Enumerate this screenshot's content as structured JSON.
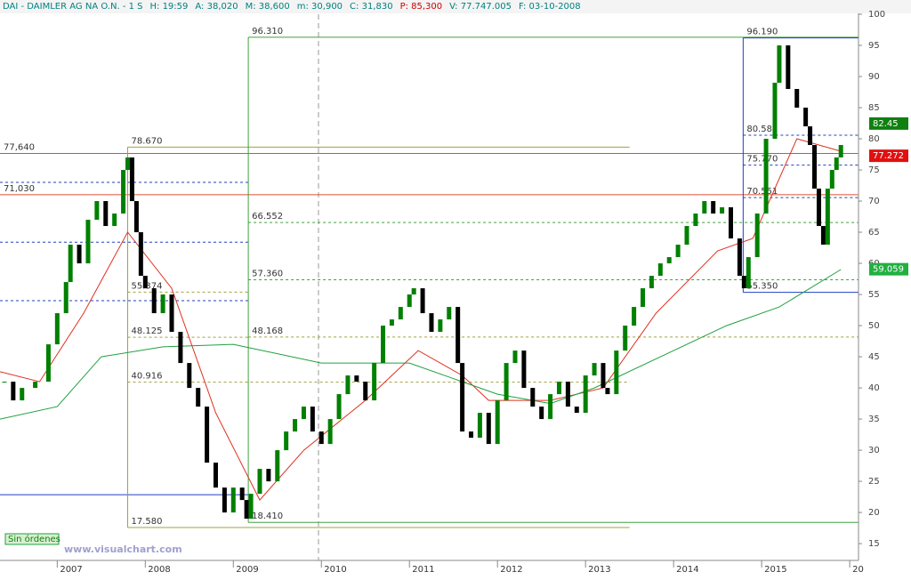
{
  "chart_data": {
    "type": "candlestick",
    "header": [
      {
        "text": "DAI - DAIMLER AG NA O.N. - 1 S",
        "color": "#008080"
      },
      {
        "text": "H: 19:59",
        "color": "#008080"
      },
      {
        "text": "A: 38,020",
        "color": "#008080"
      },
      {
        "text": "M: 38,600",
        "color": "#008080"
      },
      {
        "text": "m: 30,900",
        "color": "#008080"
      },
      {
        "text": "C: 31,830",
        "color": "#008080"
      },
      {
        "text": "P: 85,300",
        "color": "#d00000"
      },
      {
        "text": "V: 77.747.005",
        "color": "#008080"
      },
      {
        "text": "F: 03-10-2008",
        "color": "#008080"
      }
    ],
    "x": [
      2006.4,
      2006.5,
      2006.6,
      2006.75,
      2006.9,
      2007.0,
      2007.1,
      2007.15,
      2007.25,
      2007.35,
      2007.45,
      2007.55,
      2007.65,
      2007.75,
      2007.8,
      2007.85,
      2007.9,
      2007.95,
      2008.0,
      2008.1,
      2008.2,
      2008.3,
      2008.4,
      2008.5,
      2008.6,
      2008.7,
      2008.8,
      2008.9,
      2009.0,
      2009.1,
      2009.15,
      2009.2,
      2009.3,
      2009.4,
      2009.5,
      2009.6,
      2009.7,
      2009.8,
      2009.9,
      2010.0,
      2010.1,
      2010.2,
      2010.3,
      2010.4,
      2010.5,
      2010.6,
      2010.7,
      2010.8,
      2010.9,
      2011.0,
      2011.05,
      2011.15,
      2011.25,
      2011.35,
      2011.45,
      2011.55,
      2011.6,
      2011.7,
      2011.8,
      2011.9,
      2012.0,
      2012.1,
      2012.2,
      2012.3,
      2012.4,
      2012.5,
      2012.6,
      2012.7,
      2012.8,
      2012.9,
      2013.0,
      2013.1,
      2013.2,
      2013.25,
      2013.35,
      2013.45,
      2013.55,
      2013.65,
      2013.75,
      2013.85,
      2013.95,
      2014.05,
      2014.15,
      2014.25,
      2014.35,
      2014.45,
      2014.55,
      2014.65,
      2014.75,
      2014.8,
      2014.85,
      2014.95,
      2015.05,
      2015.15,
      2015.2,
      2015.3,
      2015.4,
      2015.5,
      2015.55,
      2015.6,
      2015.65,
      2015.7,
      2015.75,
      2015.8,
      2015.85,
      2015.9
    ],
    "values": [
      41,
      38,
      40,
      41,
      47,
      52,
      57,
      63,
      60,
      67,
      70,
      66,
      68,
      75,
      77,
      70,
      65,
      58,
      56,
      52,
      55,
      49,
      44,
      40,
      37,
      28,
      24,
      20,
      24,
      22,
      19,
      23,
      27,
      25,
      30,
      33,
      35,
      37,
      33,
      31,
      35,
      39,
      42,
      41,
      38,
      44,
      50,
      51,
      53,
      55,
      56,
      52,
      49,
      51,
      53,
      44,
      33,
      32,
      36,
      31,
      38,
      44,
      46,
      40,
      37,
      35,
      39,
      41,
      37,
      36,
      42,
      44,
      40,
      39,
      46,
      50,
      53,
      56,
      58,
      60,
      61,
      63,
      66,
      68,
      70,
      68,
      69,
      64,
      58,
      56,
      61,
      68,
      80,
      89,
      95,
      88,
      85,
      82,
      79,
      72,
      66,
      63,
      72,
      75,
      77,
      79
    ],
    "up_color": "#008000",
    "down_color": "#000000",
    "averages": [
      {
        "color": "#e03020",
        "x": [
          2006.35,
          2006.8,
          2007.3,
          2007.8,
          2008.3,
          2008.8,
          2009.3,
          2009.8,
          2010.5,
          2011.1,
          2011.6,
          2011.9,
          2012.6,
          2013.2,
          2013.8,
          2014.5,
          2014.9,
          2015.4,
          2015.9
        ],
        "values": [
          42.6,
          41,
          52,
          65,
          56,
          36,
          22,
          30,
          38,
          46,
          42,
          38,
          38,
          40,
          52,
          62,
          64,
          80,
          78
        ]
      },
      {
        "color": "#20a040",
        "x": [
          2006.35,
          2007.0,
          2007.5,
          2008.2,
          2009.0,
          2010.0,
          2011.0,
          2011.6,
          2012.0,
          2012.6,
          2013.1,
          2014.0,
          2014.6,
          2015.2,
          2015.9
        ],
        "values": [
          35,
          37,
          45,
          46.6,
          47,
          44,
          44,
          41,
          39,
          37.5,
          40,
          46,
          50,
          53,
          59
        ]
      }
    ],
    "levels": [
      {
        "value": 96.31,
        "label": "96.310",
        "color": "#40a040",
        "from": 2009.17,
        "to": 2016.1,
        "style": "solid"
      },
      {
        "value": 96.19,
        "label": "96.190",
        "color": "#2040c0",
        "from": 2014.79,
        "to": 2016.1,
        "style": "solid"
      },
      {
        "value": 78.67,
        "label": "78.670",
        "color": "#a0a040",
        "from": 2007.8,
        "to": 2013.5,
        "style": "solid"
      },
      {
        "value": 77.64,
        "label": "77,640",
        "color": "#e05030",
        "from": 2006.35,
        "to": 2016.1,
        "style": "solid"
      },
      {
        "value": 71.03,
        "label": "71,030",
        "color": "#e05030",
        "from": 2006.35,
        "to": 2016.1,
        "style": "solid"
      },
      {
        "value": 80.581,
        "label": "80.581",
        "color": "#2040c0",
        "from": 2014.79,
        "to": 2016.1,
        "style": "dashed"
      },
      {
        "value": 75.77,
        "label": "75.770",
        "color": "#2040c0",
        "from": 2014.79,
        "to": 2016.1,
        "style": "dashed"
      },
      {
        "value": 70.551,
        "label": "70.551",
        "color": "#2040c0",
        "from": 2014.79,
        "to": 2016.1,
        "style": "dashed"
      },
      {
        "value": 55.35,
        "label": "55.350",
        "color": "#2040c0",
        "from": 2014.79,
        "to": 2016.1,
        "style": "solid"
      },
      {
        "value": 66.552,
        "label": "66.552",
        "color": "#40a040",
        "from": 2009.17,
        "to": 2016.1,
        "style": "dashed"
      },
      {
        "value": 57.36,
        "label": "57.360",
        "color": "#40a040",
        "from": 2009.17,
        "to": 2016.1,
        "style": "dashed"
      },
      {
        "value": 48.168,
        "label": "48.168",
        "color": "#a0a040",
        "from": 2009.17,
        "to": 2016.1,
        "style": "dashed"
      },
      {
        "value": 55.374,
        "label": "55.374",
        "color": "#a0a040",
        "from": 2007.8,
        "to": 2009.17,
        "style": "dashed"
      },
      {
        "value": 48.125,
        "label": "48.125",
        "color": "#a0a040",
        "from": 2007.8,
        "to": 2009.17,
        "style": "dashed"
      },
      {
        "value": 40.916,
        "label": "40.916",
        "color": "#a0a040",
        "from": 2007.8,
        "to": 2013.5,
        "style": "dashed"
      },
      {
        "value": 17.58,
        "label": "17.580",
        "color": "#a0a040",
        "from": 2007.8,
        "to": 2013.5,
        "style": "solid"
      },
      {
        "value": 18.41,
        "label": "18.410",
        "color": "#40a040",
        "from": 2009.17,
        "to": 2016.1,
        "style": "solid"
      },
      {
        "value": 22.86,
        "color": "#2040c0",
        "from": 2006.35,
        "to": 2009.17,
        "style": "solid"
      },
      {
        "value": 73,
        "color": "#2040c0",
        "from": 2006.35,
        "to": 2009.2,
        "style": "dashed"
      },
      {
        "value": 63.4,
        "color": "#2040c0",
        "from": 2006.35,
        "to": 2009.2,
        "style": "dashed"
      },
      {
        "value": 54,
        "color": "#2040c0",
        "from": 2006.35,
        "to": 2009.2,
        "style": "dashed"
      }
    ],
    "tags": [
      {
        "value": 82.45,
        "color": "#108010"
      },
      {
        "value": 77.272,
        "color": "#e01010"
      },
      {
        "value": 59.059,
        "color": "#20b040"
      }
    ],
    "xlim": [
      2006.35,
      2016.1
    ],
    "ylim": [
      12.3,
      100
    ],
    "yticks": [
      15,
      20,
      25,
      30,
      35,
      40,
      45,
      50,
      55,
      60,
      65,
      70,
      75,
      80,
      85,
      90,
      95,
      100
    ],
    "xticks": [
      2007,
      2008,
      2009,
      2010,
      2011,
      2012,
      2013,
      2014,
      2015,
      {
        "value": 2016,
        "label": "20"
      }
    ],
    "status": "Sin órdenes",
    "watermark": "www.visualchart.com"
  }
}
